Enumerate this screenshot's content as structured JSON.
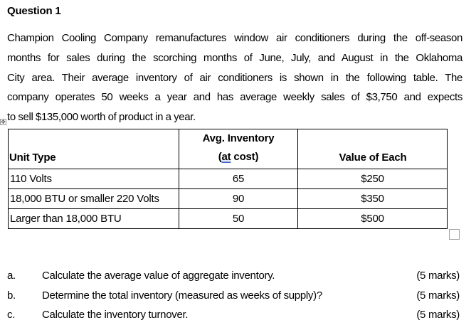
{
  "document": {
    "title": "Question 1",
    "paragraph_lines": [
      "Champion Cooling Company remanufactures window air conditioners during the off-season",
      "months for sales during the scorching months of June, July, and August in the Oklahoma",
      "City area. Their average inventory of air conditioners is shown in the following table. The",
      "company operates 50 weeks a year and has average weekly sales of $3,750 and expects",
      "to sell $135,000 worth of product in a year."
    ],
    "table_move_handle_icon": "move-arrows-icon",
    "table": {
      "headers": {
        "unit_type": "Unit Type",
        "avg_inventory_line1": "Avg. Inventory",
        "avg_inventory_line2_open": "(",
        "avg_inventory_line2_at": "at",
        "avg_inventory_line2_rest": " cost)",
        "value_of_each": "Value of Each"
      },
      "rows": [
        {
          "unit_type": "110 Volts",
          "avg_inventory": "65",
          "value_of_each": "$250"
        },
        {
          "unit_type": "18,000 BTU or smaller 220 Volts",
          "avg_inventory": "90",
          "value_of_each": "$350"
        },
        {
          "unit_type": "Larger than 18,000 BTU",
          "avg_inventory": "50",
          "value_of_each": "$500"
        }
      ]
    },
    "questions": [
      {
        "letter": "a.",
        "text": "Calculate the average value of aggregate inventory.",
        "marks": "(5 marks)"
      },
      {
        "letter": "b.",
        "text": "Determine the total inventory (measured as weeks of supply)?",
        "marks": "(5 marks)"
      },
      {
        "letter": "c.",
        "text": "Calculate the inventory turnover.",
        "marks": "(5 marks)"
      }
    ]
  }
}
